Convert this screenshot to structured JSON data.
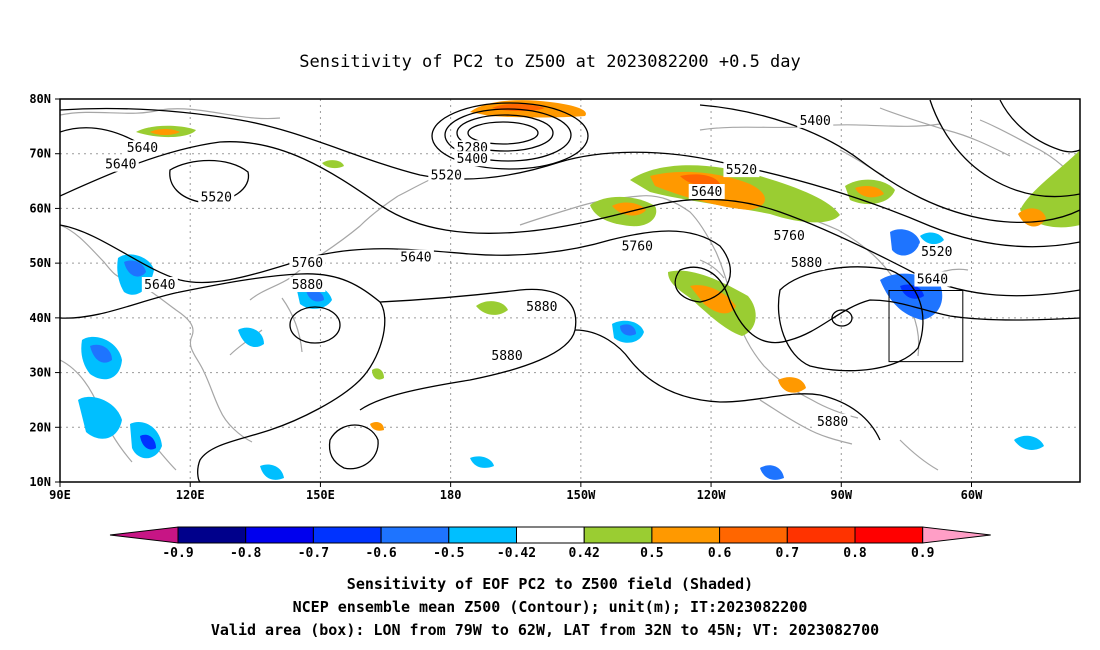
{
  "chart_data": {
    "type": "map",
    "title": "Sensitivity of PC2 to Z500 at 2023082200 +0.5 day",
    "xticks": [
      "90E",
      "120E",
      "150E",
      "180",
      "150W",
      "120W",
      "90W",
      "60W"
    ],
    "xtick_lon": [
      90,
      120,
      150,
      180,
      210,
      240,
      270,
      300
    ],
    "yticks": [
      "10N",
      "20N",
      "30N",
      "40N",
      "50N",
      "60N",
      "70N",
      "80N"
    ],
    "ytick_lat": [
      10,
      20,
      30,
      40,
      50,
      60,
      70,
      80
    ],
    "xlim": [
      90,
      325
    ],
    "ylim": [
      10,
      80
    ],
    "grid": true,
    "contour_labels": [
      {
        "text": "5640",
        "lon": 109,
        "lat": 71
      },
      {
        "text": "5640",
        "lon": 104,
        "lat": 68
      },
      {
        "text": "5520",
        "lon": 126,
        "lat": 62
      },
      {
        "text": "5280",
        "lon": 185,
        "lat": 71
      },
      {
        "text": "5400",
        "lon": 185,
        "lat": 69
      },
      {
        "text": "5520",
        "lon": 179,
        "lat": 66
      },
      {
        "text": "5640",
        "lon": 113,
        "lat": 46
      },
      {
        "text": "5760",
        "lon": 147,
        "lat": 50
      },
      {
        "text": "5880",
        "lon": 147,
        "lat": 46
      },
      {
        "text": "5640",
        "lon": 172,
        "lat": 51
      },
      {
        "text": "5760",
        "lon": 223,
        "lat": 53
      },
      {
        "text": "5880",
        "lon": 201,
        "lat": 42
      },
      {
        "text": "5880",
        "lon": 193,
        "lat": 33
      },
      {
        "text": "5400",
        "lon": 264,
        "lat": 76
      },
      {
        "text": "5520",
        "lon": 247,
        "lat": 67
      },
      {
        "text": "5640",
        "lon": 239,
        "lat": 63
      },
      {
        "text": "5760",
        "lon": 258,
        "lat": 55
      },
      {
        "text": "5880",
        "lon": 262,
        "lat": 50
      },
      {
        "text": "5520",
        "lon": 292,
        "lat": 52
      },
      {
        "text": "5640",
        "lon": 291,
        "lat": 47
      },
      {
        "text": "5880",
        "lon": 268,
        "lat": 21
      }
    ],
    "valid_box": {
      "lon": [
        281,
        298
      ],
      "lat": [
        32,
        45
      ]
    },
    "colorbar": {
      "labels": [
        "-0.9",
        "-0.8",
        "-0.7",
        "-0.6",
        "-0.5",
        "-0.42",
        "0.42",
        "0.5",
        "0.6",
        "0.7",
        "0.8",
        "0.9"
      ],
      "colors": [
        "#c71585",
        "#00008b",
        "#0000ee",
        "#0033ff",
        "#1e74ff",
        "#00bfff",
        "#ffffff",
        "#9acd32",
        "#ff9900",
        "#ff6600",
        "#ff3300",
        "#ff0000",
        "#ff9ec6"
      ]
    },
    "captions": [
      "Sensitivity of EOF PC2 to Z500 field (Shaded)",
      "NCEP ensemble mean Z500 (Contour); unit(m); IT:2023082200",
      "Valid area (box): LON from 79W to 62W, LAT from 32N to 45N; VT: 2023082700"
    ]
  }
}
